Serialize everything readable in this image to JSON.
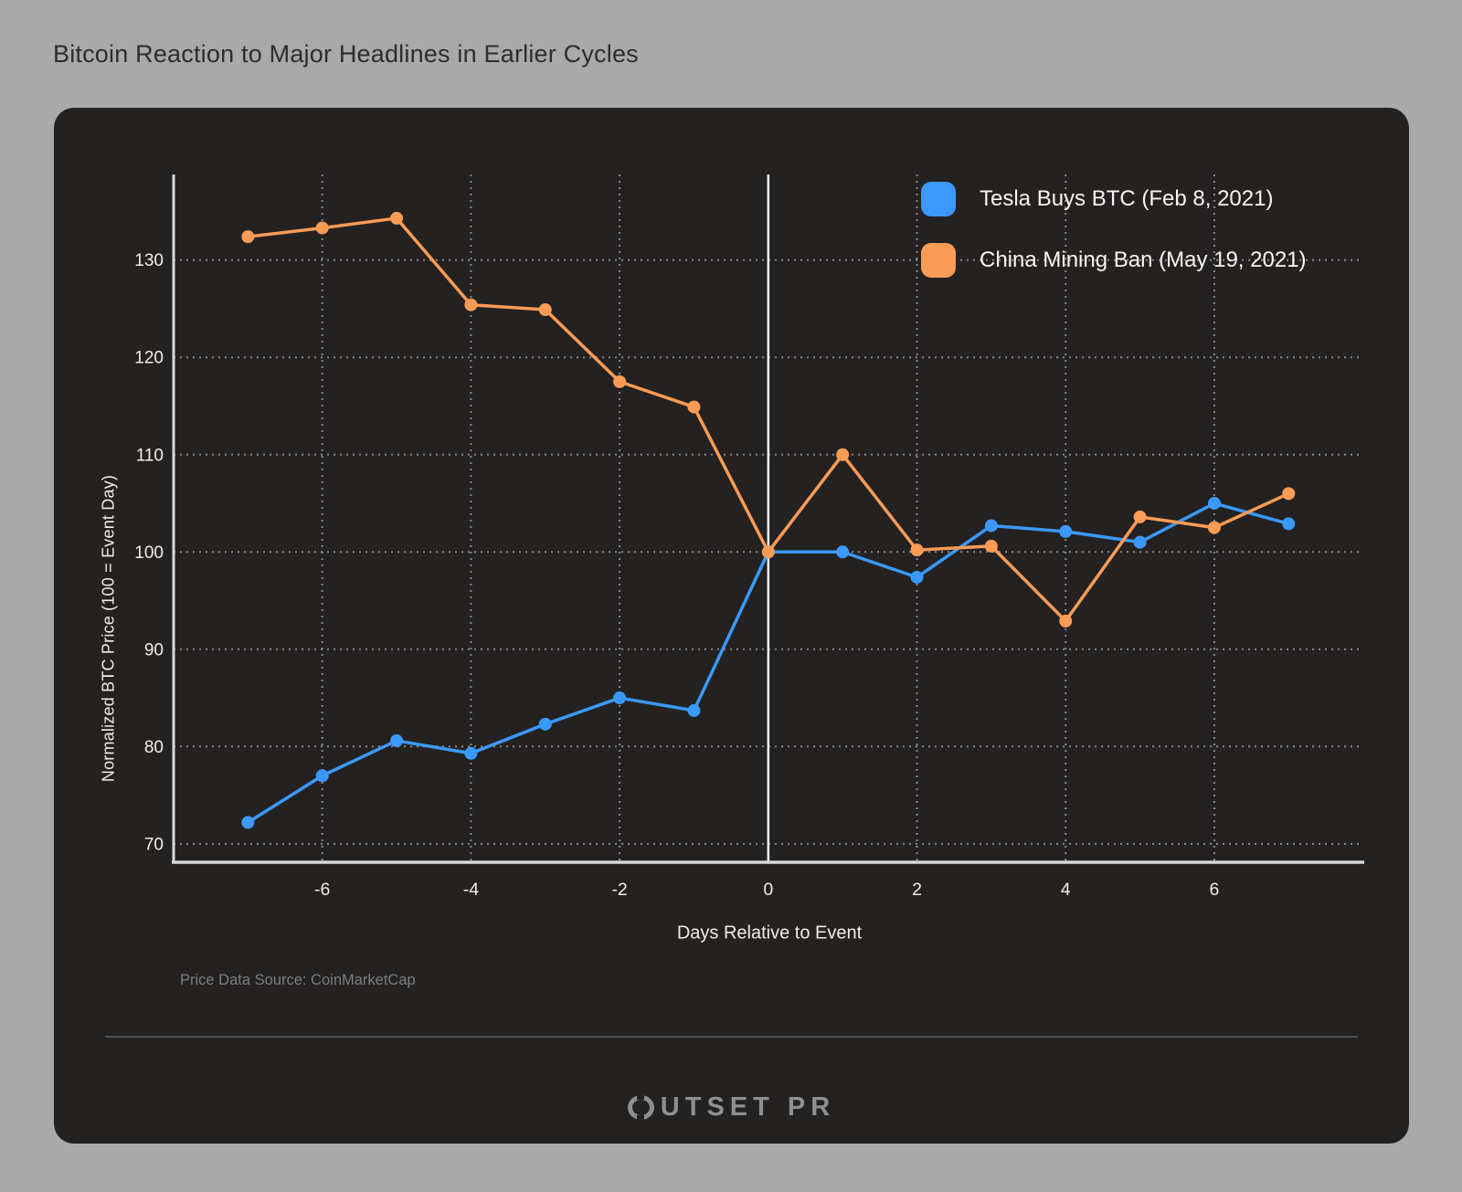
{
  "title": "Bitcoin Reaction to Major Headlines in Earlier Cycles",
  "source_note": "Price Data Source: CoinMarketCap",
  "brand": "OUTSET PR",
  "brand_rest": "UTSET PR",
  "colors": {
    "page_bg": "#a9a9a9",
    "card_bg": "#242121",
    "title_text": "#2d2d2d",
    "axis_text": "#f1ede9",
    "grid": "#9a9a9a",
    "axis_line": "#d8d8d8",
    "event_line": "#f5f5f5",
    "source_text": "#7e7e7e",
    "divider": "#4f4f4f",
    "logo": "#8f8f8f",
    "blue": "#3b99fb",
    "orange": "#fa9c55"
  },
  "chart_data": {
    "type": "line",
    "title": "Bitcoin Reaction to Major Headlines in Earlier Cycles",
    "xlabel": "Days Relative to Event",
    "ylabel": "Normalized BTC Price (100 = Event Day)",
    "x": [
      -7,
      -6,
      -5,
      -4,
      -3,
      -2,
      -1,
      0,
      1,
      2,
      3,
      4,
      5,
      6,
      7
    ],
    "series": [
      {
        "name": "Tesla Buys BTC (Feb 8, 2021)",
        "color": "#3b99fb",
        "values": [
          72.2,
          77.0,
          80.6,
          79.3,
          82.3,
          85.0,
          83.7,
          100.0,
          100.0,
          97.4,
          102.7,
          102.1,
          101.0,
          105.0,
          102.9
        ]
      },
      {
        "name": "China Mining Ban (May 19, 2021)",
        "color": "#fa9c55",
        "values": [
          132.4,
          133.3,
          134.3,
          125.4,
          124.9,
          117.5,
          114.9,
          100.0,
          110.0,
          100.2,
          100.6,
          92.9,
          103.6,
          102.5,
          106.0
        ]
      }
    ],
    "xticks": [
      -6,
      -4,
      -2,
      0,
      2,
      4,
      6
    ],
    "yticks": [
      70,
      80,
      90,
      100,
      110,
      120,
      130
    ],
    "xlim": [
      -8,
      7.98
    ],
    "ylim": [
      68.2,
      138.8
    ],
    "event_line_x": 0,
    "grid": "dotted",
    "legend_position": "top-right"
  }
}
